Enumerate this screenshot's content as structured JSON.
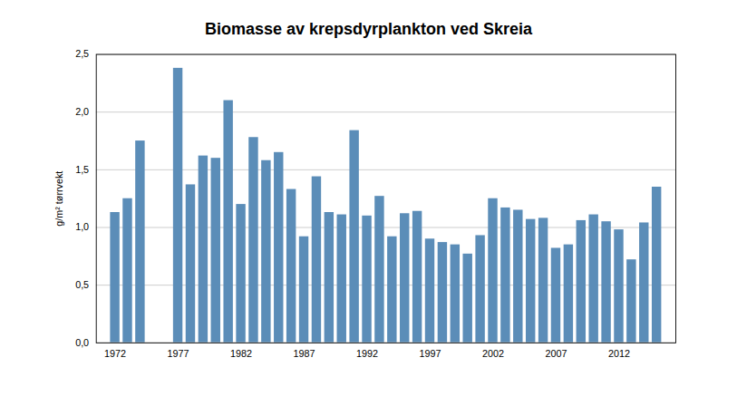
{
  "chart_data": {
    "type": "bar",
    "title": "Biomasse av krepsdyrplankton ved Skreia",
    "ylabel": "g/m² tørrvekt",
    "color": "#5b8db8",
    "x": [
      1972,
      1973,
      1974,
      1977,
      1978,
      1979,
      1980,
      1981,
      1982,
      1983,
      1984,
      1985,
      1986,
      1987,
      1988,
      1989,
      1990,
      1991,
      1992,
      1993,
      1994,
      1995,
      1996,
      1997,
      1998,
      1999,
      2000,
      2001,
      2002,
      2003,
      2004,
      2005,
      2006,
      2007,
      2008,
      2009,
      2010,
      2011,
      2012,
      2013,
      2014,
      2015
    ],
    "values": [
      1.13,
      1.25,
      1.75,
      2.38,
      1.37,
      1.62,
      1.6,
      2.1,
      1.2,
      1.78,
      1.58,
      1.65,
      1.33,
      0.92,
      1.44,
      1.13,
      1.11,
      1.84,
      1.1,
      1.27,
      0.92,
      1.12,
      1.14,
      0.9,
      0.87,
      0.85,
      0.77,
      0.93,
      1.25,
      1.17,
      1.15,
      1.07,
      1.08,
      0.82,
      0.85,
      1.06,
      1.11,
      1.05,
      0.98,
      0.72,
      1.04,
      1.35
    ],
    "xlim": [
      1970.5,
      2016.5
    ],
    "xticks": [
      1972,
      1977,
      1982,
      1987,
      1992,
      1997,
      2002,
      2007,
      2012
    ],
    "ylim": [
      0,
      2.5
    ],
    "yticks": [
      {
        "value": 0.0,
        "label": "0,0"
      },
      {
        "value": 0.5,
        "label": "0,5"
      },
      {
        "value": 1.0,
        "label": "1,0"
      },
      {
        "value": 1.5,
        "label": "1,5"
      },
      {
        "value": 2.0,
        "label": "2,0"
      },
      {
        "value": 2.5,
        "label": "2,5"
      }
    ],
    "grid": true
  }
}
